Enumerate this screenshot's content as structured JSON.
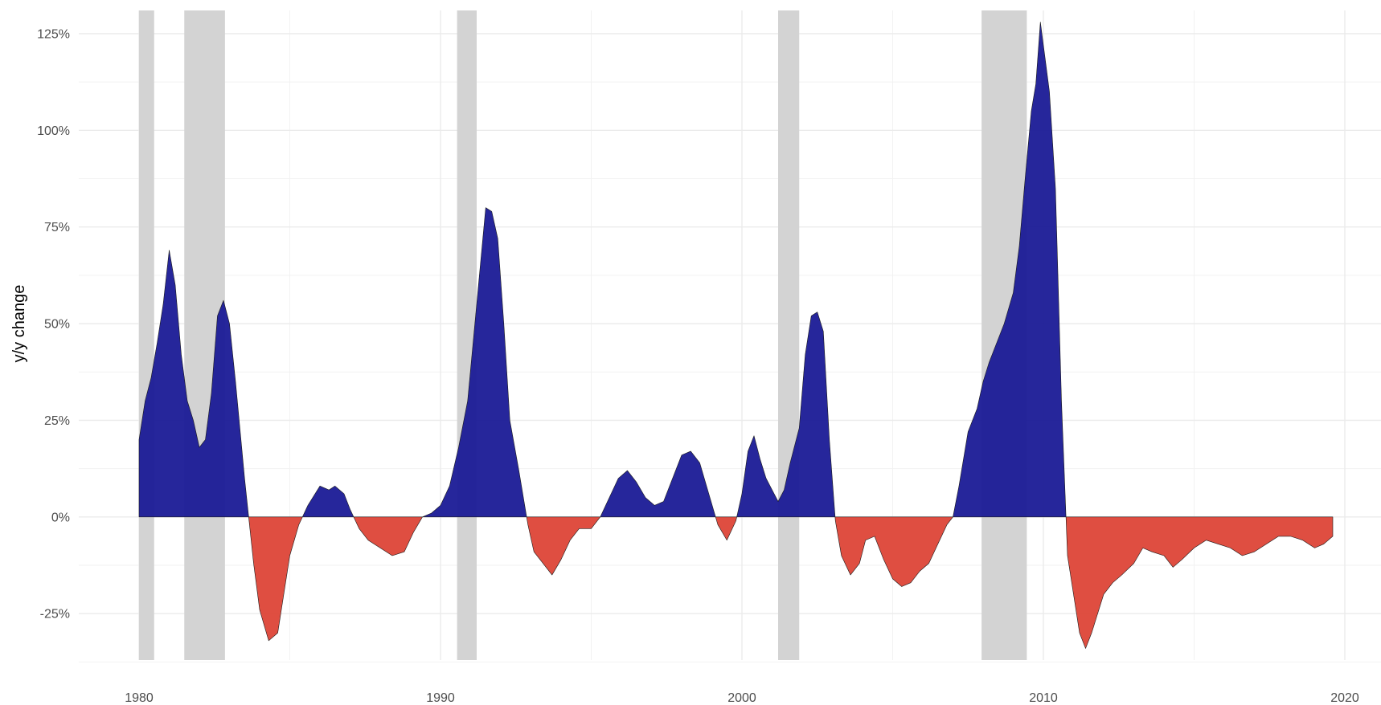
{
  "chart_data": {
    "type": "area",
    "title": "",
    "xlabel": "",
    "ylabel": "y/y change",
    "xlim": [
      1978.0,
      2021.2
    ],
    "ylim": [
      -37,
      131
    ],
    "x_ticks": [
      1980,
      1990,
      2000,
      2010,
      2020
    ],
    "x_tick_labels": [
      "1980",
      "1990",
      "2000",
      "2010",
      "2020"
    ],
    "y_ticks": [
      -25,
      0,
      25,
      50,
      75,
      100,
      125
    ],
    "y_tick_labels": [
      "-25%",
      "0%",
      "25%",
      "50%",
      "75%",
      "100%",
      "125%"
    ],
    "grid": true,
    "positive_color": "#1a1a96",
    "negative_color": "#dd4437",
    "recession_color": "#d3d3d3",
    "recessions": [
      [
        1980.0,
        1980.5
      ],
      [
        1981.5,
        1982.85
      ],
      [
        1990.55,
        1991.2
      ],
      [
        2001.2,
        2001.9
      ],
      [
        2007.95,
        2009.45
      ]
    ],
    "series": [
      {
        "x": [
          1980.0,
          1980.2,
          1980.4,
          1980.6,
          1980.8,
          1981.0,
          1981.2,
          1981.4,
          1981.6,
          1981.8,
          1982.0,
          1982.2,
          1982.4,
          1982.6,
          1982.8,
          1983.0,
          1983.2,
          1983.5,
          1983.8,
          1984.0,
          1984.3,
          1984.6,
          1984.8,
          1985.0,
          1985.3,
          1985.6,
          1986.0,
          1986.3,
          1986.5,
          1986.8,
          1987.0,
          1987.3,
          1987.6,
          1988.0,
          1988.4,
          1988.8,
          1989.1,
          1989.4,
          1989.7,
          1990.0,
          1990.3,
          1990.6,
          1990.9,
          1991.2,
          1991.5,
          1991.7,
          1991.9,
          1992.1,
          1992.3,
          1992.6,
          1992.9,
          1993.1,
          1993.4,
          1993.7,
          1994.0,
          1994.3,
          1994.6,
          1995.0,
          1995.3,
          1995.6,
          1995.9,
          1996.2,
          1996.5,
          1996.8,
          1997.1,
          1997.4,
          1997.7,
          1998.0,
          1998.3,
          1998.6,
          1998.9,
          1999.2,
          1999.5,
          1999.8,
          2000.0,
          2000.2,
          2000.4,
          2000.6,
          2000.8,
          2001.0,
          2001.2,
          2001.4,
          2001.6,
          2001.9,
          2002.1,
          2002.3,
          2002.5,
          2002.7,
          2002.9,
          2003.1,
          2003.3,
          2003.6,
          2003.9,
          2004.1,
          2004.4,
          2004.7,
          2005.0,
          2005.3,
          2005.6,
          2005.9,
          2006.2,
          2006.5,
          2006.8,
          2007.0,
          2007.2,
          2007.5,
          2007.8,
          2008.0,
          2008.2,
          2008.4,
          2008.7,
          2009.0,
          2009.2,
          2009.4,
          2009.6,
          2009.75,
          2009.9,
          2010.0,
          2010.2,
          2010.4,
          2010.6,
          2010.8,
          2011.0,
          2011.2,
          2011.4,
          2011.6,
          2011.8,
          2012.0,
          2012.3,
          2012.6,
          2013.0,
          2013.3,
          2013.6,
          2014.0,
          2014.3,
          2014.6,
          2015.0,
          2015.4,
          2015.8,
          2016.2,
          2016.6,
          2017.0,
          2017.4,
          2017.8,
          2018.2,
          2018.6,
          2019.0,
          2019.3,
          2019.6
        ],
        "y": [
          20,
          30,
          36,
          45,
          55,
          69,
          60,
          42,
          30,
          25,
          18,
          20,
          32,
          52,
          56,
          50,
          35,
          10,
          -12,
          -24,
          -32,
          -30,
          -20,
          -10,
          -2,
          3,
          8,
          7,
          8,
          6,
          2,
          -3,
          -6,
          -8,
          -10,
          -9,
          -4,
          0,
          1,
          3,
          8,
          18,
          30,
          55,
          80,
          79,
          72,
          50,
          25,
          12,
          -2,
          -9,
          -12,
          -15,
          -11,
          -6,
          -3,
          -3,
          0,
          5,
          10,
          12,
          9,
          5,
          3,
          4,
          10,
          16,
          17,
          14,
          6,
          -2,
          -6,
          -1,
          6,
          17,
          21,
          15,
          10,
          7,
          4,
          7,
          14,
          23,
          42,
          52,
          53,
          48,
          20,
          -1,
          -10,
          -15,
          -12,
          -6,
          -5,
          -11,
          -16,
          -18,
          -17,
          -14,
          -12,
          -7,
          -2,
          0,
          8,
          22,
          28,
          35,
          40,
          44,
          50,
          58,
          70,
          88,
          105,
          112,
          128,
          122,
          110,
          85,
          30,
          -10,
          -20,
          -30,
          -34,
          -30,
          -25,
          -20,
          -17,
          -15,
          -12,
          -8,
          -9,
          -10,
          -13,
          -11,
          -8,
          -6,
          -7,
          -8,
          -10,
          -9,
          -7,
          -5,
          -5,
          -6,
          -8,
          -7,
          -5
        ]
      }
    ]
  }
}
